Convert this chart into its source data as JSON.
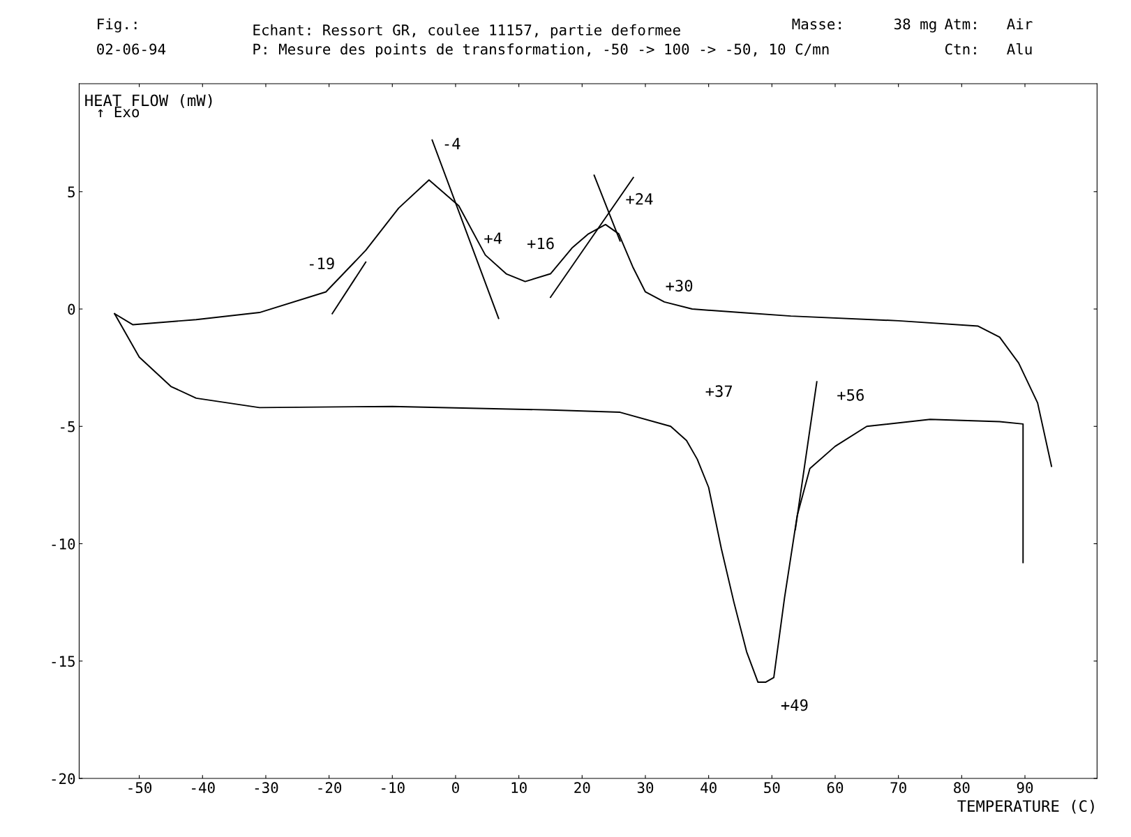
{
  "chart_data": {
    "type": "line",
    "title": "Echant: Ressort GR, coulee 11157, partie deformee",
    "subtitle": "P: Mesure des points de transformation, -50 -> 100 -> -50, 10 C/mn",
    "xlabel": "TEMPERATURE (C)",
    "ylabel": "HEAT FLOW (mW)",
    "annotations": [
      "Fig.:",
      "02-06-94",
      "Masse:",
      "38 mg",
      "Atm:",
      "Air",
      "Ctn:",
      "Alu",
      "↑ Exo",
      {
        "text": "-19",
        "x": -20.5,
        "y": 0.73
      },
      {
        "text": "-4",
        "x": -3.7,
        "y": 7.2
      },
      {
        "text": "+4",
        "x": 4.7,
        "y": 2.3
      },
      {
        "text": "+16",
        "x": 15,
        "y": 1.5
      },
      {
        "text": "+24",
        "x": 23.7,
        "y": 3.6
      },
      {
        "text": "+30",
        "x": 30,
        "y": 0.73
      },
      {
        "text": "+37",
        "x": 34,
        "y": -5.0
      },
      {
        "text": "+56",
        "x": 57.1,
        "y": -3.1
      },
      {
        "text": "+49",
        "x": 49,
        "y": -15.9
      }
    ],
    "series": [
      {
        "color": "#000000",
        "x": [
          -53.9,
          -51,
          -41,
          -31,
          -20.5,
          -14.2,
          -9,
          -4.2,
          0.5,
          4.7,
          8,
          11,
          15,
          18.4,
          21,
          23.7,
          25.8,
          28,
          30,
          33,
          37.4,
          45,
          53,
          70,
          82.6,
          86,
          89,
          92,
          94.2
        ],
        "values": [
          -0.2,
          -0.67,
          -0.45,
          -0.15,
          0.73,
          2.5,
          4.3,
          5.5,
          4.4,
          2.3,
          1.5,
          1.17,
          1.5,
          2.6,
          3.2,
          3.6,
          3.2,
          1.8,
          0.73,
          0.3,
          0,
          -0.15,
          -0.3,
          -0.5,
          -0.73,
          -1.2,
          -2.3,
          -4.0,
          -6.7
        ]
      },
      {
        "color": "#000000",
        "x": [
          -53.9,
          -50,
          -45,
          -41,
          -31,
          -10,
          15,
          26,
          34,
          36.5,
          38.2,
          40,
          42,
          44,
          46,
          47.8,
          49,
          50.3,
          52,
          54,
          56,
          60,
          65,
          75,
          86,
          89.7,
          89.7
        ],
        "values": [
          -0.2,
          -2.05,
          -3.3,
          -3.8,
          -4.2,
          -4.15,
          -4.3,
          -4.4,
          -5.0,
          -5.6,
          -6.4,
          -7.6,
          -10.2,
          -12.5,
          -14.6,
          -15.9,
          -15.9,
          -15.7,
          -12.3,
          -8.8,
          -6.8,
          -5.85,
          -5.0,
          -4.7,
          -4.8,
          -4.9,
          -10.8
        ]
      },
      {
        "color": "#000000",
        "x": [
          -19.5,
          -14.2
        ],
        "values": [
          -0.2,
          2.0
        ]
      },
      {
        "color": "#000000",
        "x": [
          -3.7,
          6.8
        ],
        "values": [
          7.2,
          -0.4
        ]
      },
      {
        "color": "#000000",
        "x": [
          15,
          28.1
        ],
        "values": [
          0.5,
          5.6
        ]
      },
      {
        "color": "#000000",
        "x": [
          21.9,
          26
        ],
        "values": [
          5.7,
          2.9
        ]
      },
      {
        "color": "#000000",
        "x": [
          53.7,
          57.1
        ],
        "values": [
          -9.4,
          -3.1
        ]
      }
    ],
    "xlim": [
      -59.5,
      101.4
    ],
    "ylim": [
      -20,
      9.6
    ],
    "xticks": [
      -50,
      -40,
      -30,
      -20,
      -10,
      0,
      10,
      20,
      30,
      40,
      50,
      60,
      70,
      80,
      90
    ],
    "yticks": [
      -20,
      -15,
      -10,
      -5,
      0,
      5
    ],
    "grid": false,
    "legend": false
  }
}
